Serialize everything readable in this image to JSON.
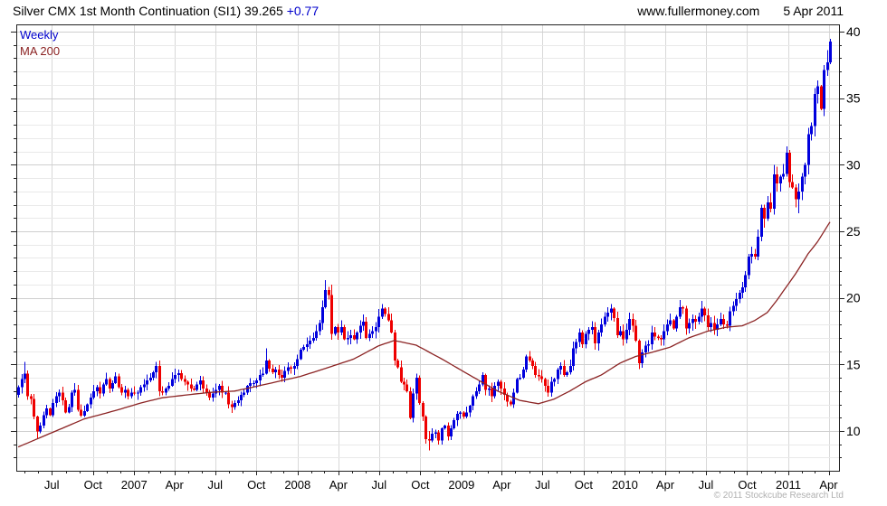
{
  "header": {
    "title_main": "Silver CMX 1st Month Continuation (SI1) 39.265 ",
    "title_change": "+0.77",
    "website": "www.fullermoney.com",
    "date": "5 Apr 2011"
  },
  "legend": {
    "series_label": "Weekly",
    "ma_label": "MA 200"
  },
  "footer": {
    "copyright": "© 2011 Stockcube Research Ltd"
  },
  "colors": {
    "up_candle": "#0000dd",
    "down_candle": "#ee0000",
    "ma_line": "#8b2323",
    "title_change": "#0000cc",
    "legend_series": "#0000cc",
    "grid_minor": "#e9e9e9",
    "grid_major": "#cfcfcf",
    "grid_vertical": "#d8d8d8",
    "axis": "#222222",
    "tick_label": "#000000",
    "copyright": "#b0b0b0"
  },
  "chart_data": {
    "type": "candlestick",
    "interval": "weekly",
    "title": "Silver CMX 1st Month Continuation (SI1)",
    "last_price": 39.265,
    "change": 0.77,
    "ylim": [
      7.0,
      40.6
    ],
    "y_labels": [
      10,
      15,
      20,
      25,
      30,
      35,
      40
    ],
    "y_minor_step": 1,
    "x_ticks": [
      {
        "date": "2006-07-01",
        "label": "Jul"
      },
      {
        "date": "2006-10-01",
        "label": "Oct"
      },
      {
        "date": "2007-01-01",
        "label": "2007"
      },
      {
        "date": "2007-04-01",
        "label": "Apr"
      },
      {
        "date": "2007-07-01",
        "label": "Jul"
      },
      {
        "date": "2007-10-01",
        "label": "Oct"
      },
      {
        "date": "2008-01-01",
        "label": "2008"
      },
      {
        "date": "2008-04-01",
        "label": "Apr"
      },
      {
        "date": "2008-07-01",
        "label": "Jul"
      },
      {
        "date": "2008-10-01",
        "label": "Oct"
      },
      {
        "date": "2009-01-01",
        "label": "2009"
      },
      {
        "date": "2009-04-01",
        "label": "Apr"
      },
      {
        "date": "2009-07-01",
        "label": "Jul"
      },
      {
        "date": "2009-10-01",
        "label": "Oct"
      },
      {
        "date": "2010-01-01",
        "label": "2010"
      },
      {
        "date": "2010-04-01",
        "label": "Apr"
      },
      {
        "date": "2010-07-01",
        "label": "Jul"
      },
      {
        "date": "2010-10-01",
        "label": "Oct"
      },
      {
        "date": "2011-01-01",
        "label": "2011"
      },
      {
        "date": "2011-04-01",
        "label": "Apr"
      }
    ],
    "start_date": "2006-04-17",
    "first_open": 12.7,
    "weekly_closes": [
      13.3,
      13.9,
      14.3,
      12.6,
      12.4,
      11.1,
      9.95,
      10.4,
      11.2,
      11.7,
      11.2,
      12.1,
      12.6,
      12.9,
      12.3,
      11.4,
      11.8,
      12.9,
      13.1,
      11.6,
      11.15,
      11.5,
      12.0,
      12.5,
      13.0,
      13.3,
      12.8,
      13.5,
      13.9,
      13.2,
      13.6,
      14.1,
      13.3,
      12.9,
      13.1,
      12.6,
      12.9,
      12.8,
      12.9,
      13.3,
      13.5,
      13.8,
      14.0,
      14.4,
      14.9,
      13.0,
      12.9,
      13.2,
      13.4,
      13.9,
      14.2,
      14.35,
      13.9,
      13.7,
      13.5,
      13.2,
      13.1,
      13.5,
      13.8,
      13.2,
      12.9,
      12.5,
      12.8,
      13.1,
      13.4,
      12.9,
      12.9,
      12.0,
      11.8,
      12.1,
      12.3,
      12.7,
      12.9,
      13.4,
      13.6,
      13.6,
      13.8,
      14.2,
      14.3,
      15.3,
      14.7,
      14.4,
      14.6,
      14.2,
      14.0,
      14.5,
      14.8,
      14.7,
      14.9,
      15.4,
      16.1,
      16.3,
      16.5,
      16.8,
      17.0,
      17.5,
      18.1,
      19.3,
      20.6,
      20.2,
      17.3,
      17.8,
      17.4,
      17.8,
      16.9,
      17.0,
      17.2,
      16.9,
      17.4,
      17.9,
      18.2,
      17.0,
      17.3,
      17.5,
      17.8,
      18.6,
      19.2,
      18.8,
      18.3,
      17.4,
      15.3,
      14.8,
      13.7,
      13.5,
      13.0,
      11.0,
      12.8,
      14.0,
      12.1,
      11.1,
      9.4,
      9.3,
      9.8,
      9.9,
      9.3,
      10.2,
      10.4,
      9.6,
      10.2,
      10.8,
      11.3,
      11.4,
      11.1,
      11.4,
      11.9,
      12.6,
      13.0,
      13.5,
      14.2,
      13.1,
      13.2,
      12.6,
      13.4,
      13.7,
      13.2,
      12.7,
      12.2,
      12.0,
      12.9,
      13.9,
      14.0,
      14.6,
      15.6,
      15.3,
      14.9,
      14.2,
      14.1,
      13.9,
      13.4,
      12.9,
      13.7,
      13.9,
      14.6,
      14.9,
      14.2,
      14.4,
      14.9,
      16.2,
      16.7,
      17.4,
      16.5,
      17.3,
      17.6,
      17.8,
      16.6,
      17.4,
      18.0,
      18.6,
      18.9,
      19.2,
      18.5,
      17.2,
      17.5,
      16.9,
      17.6,
      18.4,
      17.9,
      16.8,
      15.1,
      15.9,
      16.4,
      16.5,
      17.4,
      17.1,
      17.0,
      16.9,
      17.5,
      18.0,
      18.3,
      17.7,
      18.6,
      19.3,
      19.2,
      17.7,
      18.1,
      18.4,
      18.2,
      18.6,
      19.2,
      18.7,
      17.8,
      18.1,
      17.6,
      18.0,
      18.4,
      18.0,
      17.9,
      19.0,
      19.4,
      19.9,
      20.4,
      20.8,
      21.7,
      23.1,
      23.3,
      23.1,
      24.6,
      26.75,
      25.94,
      27.18,
      26.7,
      29.27,
      28.6,
      29.1,
      29.3,
      30.9,
      28.7,
      28.3,
      27.4,
      28.0,
      29.1,
      30.0,
      32.3,
      32.9,
      35.3,
      35.9,
      34.2,
      37.1,
      37.7,
      39.27
    ],
    "wick_overrides": {
      "2": [
        15.2,
        13.6
      ],
      "6": [
        11.15,
        9.45
      ],
      "79": [
        16.2,
        14.25
      ],
      "98": [
        21.35,
        19.2
      ],
      "100": [
        21.0,
        16.85
      ],
      "116": [
        19.55,
        18.4
      ],
      "131": [
        10.0,
        8.55
      ],
      "189": [
        19.55,
        18.3
      ],
      "198": [
        16.9,
        14.65
      ],
      "211": [
        19.85,
        18.4
      ],
      "249": [
        28.6,
        26.35
      ],
      "259": [
        39.45,
        37.55
      ]
    },
    "ma200": {
      "label": "MA 200",
      "anchors": [
        [
          0,
          8.8
        ],
        [
          10,
          9.8
        ],
        [
          21,
          10.9
        ],
        [
          32,
          11.6
        ],
        [
          39,
          12.1
        ],
        [
          46,
          12.5
        ],
        [
          61,
          12.9
        ],
        [
          69,
          13.0
        ],
        [
          75,
          13.3
        ],
        [
          90,
          14.1
        ],
        [
          98,
          14.7
        ],
        [
          107,
          15.4
        ],
        [
          115,
          16.4
        ],
        [
          120,
          16.8
        ],
        [
          127,
          16.45
        ],
        [
          136,
          15.3
        ],
        [
          144,
          14.2
        ],
        [
          153,
          13.0
        ],
        [
          160,
          12.3
        ],
        [
          166,
          12.05
        ],
        [
          171,
          12.4
        ],
        [
          176,
          13.0
        ],
        [
          181,
          13.7
        ],
        [
          186,
          14.2
        ],
        [
          192,
          15.1
        ],
        [
          197,
          15.6
        ],
        [
          202,
          15.9
        ],
        [
          208,
          16.3
        ],
        [
          214,
          17.0
        ],
        [
          220,
          17.5
        ],
        [
          226,
          17.8
        ],
        [
          231,
          17.9
        ],
        [
          235,
          18.3
        ],
        [
          239,
          18.9
        ],
        [
          242,
          19.8
        ],
        [
          245,
          20.8
        ],
        [
          248,
          21.8
        ],
        [
          252,
          23.3
        ],
        [
          255,
          24.2
        ],
        [
          259,
          25.7
        ]
      ]
    }
  }
}
